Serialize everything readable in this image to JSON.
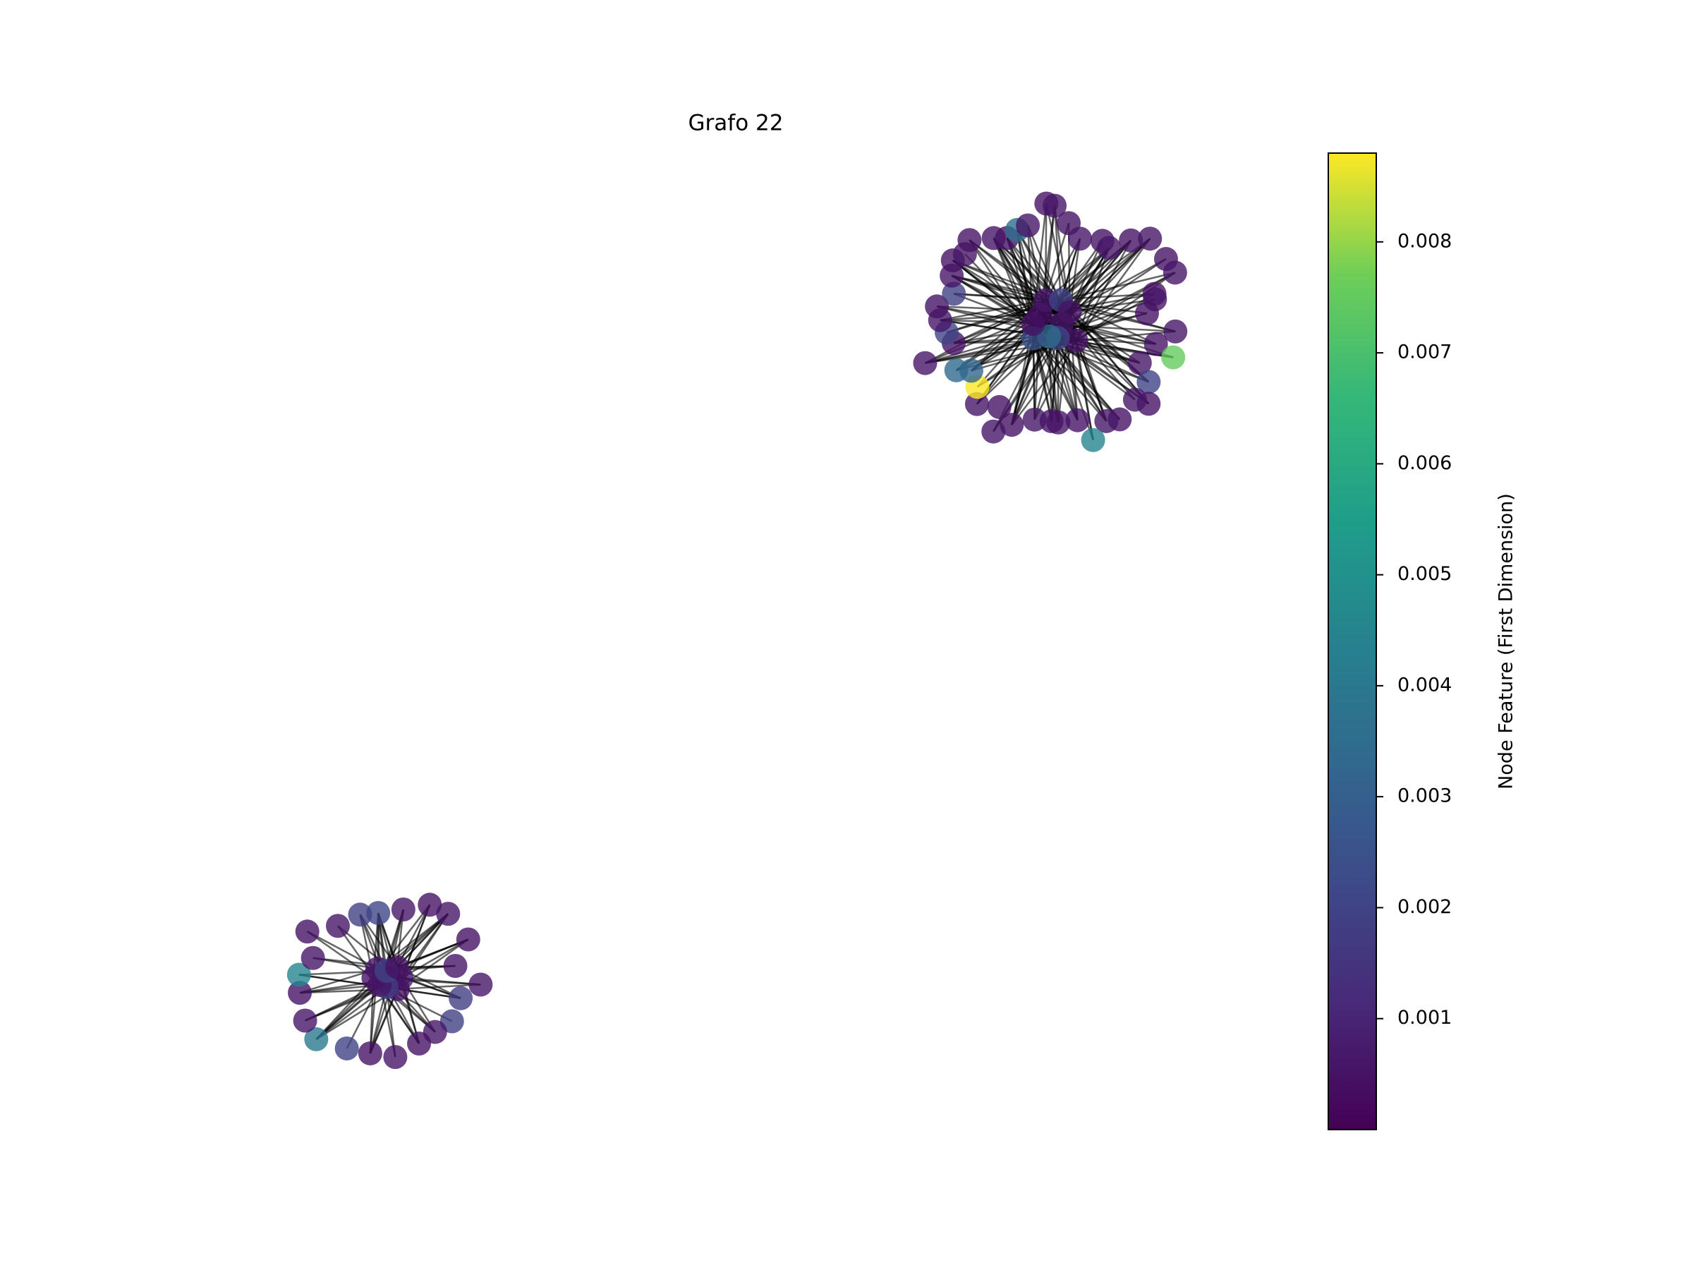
{
  "chart_data": {
    "type": "network",
    "title": "Grafo 22",
    "colormap": "viridis",
    "clim": [
      0,
      0.0088
    ],
    "cticks": [
      0.001,
      0.002,
      0.003,
      0.004,
      0.005,
      0.006,
      0.007,
      0.008
    ],
    "colorbar_label": "Node Feature (First Dimension)",
    "clusters": [
      {
        "values": [
          0.0006,
          0.0005,
          0.002,
          0.0035,
          0.0025,
          0.0005,
          0.0004,
          0.0006,
          0.002,
          0.0005,
          0.0006,
          0.0005,
          0.0075,
          0.0006,
          0.002,
          0.0005,
          0.0006,
          0.0005,
          0.0006,
          0.0045,
          0.0005,
          0.0006,
          0.0005,
          0.0006,
          0.0005,
          0.0006,
          0.0005,
          0.0006,
          0.0088,
          0.0032,
          0.0034,
          0.0006,
          0.0005,
          0.002,
          0.0006,
          0.0005,
          0.0019,
          0.0006,
          0.0005,
          0.0006,
          0.0005,
          0.0006,
          0.0005,
          0.0036,
          0.0006,
          0.0005,
          0.0006,
          0.0005,
          0.0006,
          0.0005,
          0.0006,
          0.0005,
          0.0006,
          0.0005,
          0.0006,
          0.0005,
          0.0006,
          0.0005
        ]
      },
      {
        "values": [
          0.0006,
          0.0005,
          0.0018,
          0.0006,
          0.0005,
          0.0006,
          0.002,
          0.0005,
          0.0006,
          0.0018,
          0.0019,
          0.0006,
          0.0005,
          0.0006,
          0.0005,
          0.002,
          0.004,
          0.0006,
          0.0005,
          0.0045,
          0.0006,
          0.0005,
          0.0006,
          0.0019,
          0.0021,
          0.0006,
          0.0005,
          0.0006,
          0.0005,
          0.0006
        ]
      }
    ]
  }
}
